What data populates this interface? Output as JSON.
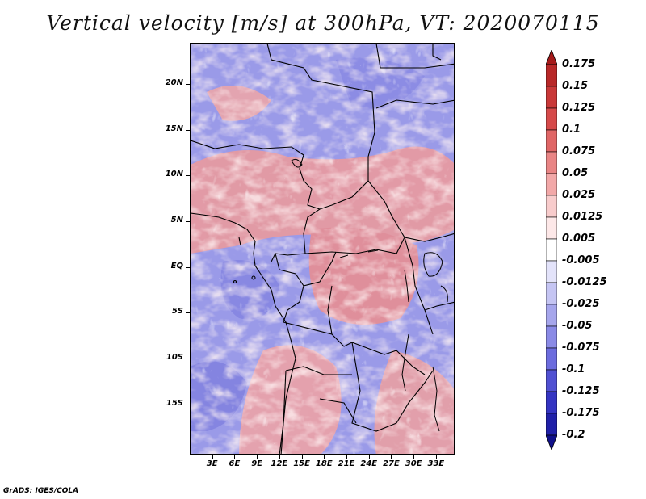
{
  "title": "Vertical velocity [m/s] at 300hPa, VT: 2020070115",
  "credit": "GrADS: IGES/COLA",
  "map": {
    "lat_labels": [
      "20N",
      "15N",
      "10N",
      "5N",
      "EQ",
      "5S",
      "10S",
      "15S"
    ],
    "lat_values": [
      20,
      15,
      10,
      5,
      0,
      -5,
      -10,
      -15
    ],
    "lon_labels": [
      "3E",
      "6E",
      "9E",
      "12E",
      "15E",
      "18E",
      "21E",
      "24E",
      "27E",
      "30E",
      "33E"
    ],
    "lon_values": [
      3,
      6,
      9,
      12,
      15,
      18,
      21,
      24,
      27,
      30,
      33
    ]
  },
  "colorbar": {
    "labels": [
      "0.175",
      "0.15",
      "0.125",
      "0.1",
      "0.075",
      "0.05",
      "0.025",
      "0.0125",
      "0.005",
      "-0.005",
      "-0.0125",
      "-0.025",
      "-0.05",
      "-0.075",
      "-0.1",
      "-0.125",
      "-0.175",
      "-0.2"
    ],
    "colors": [
      "#a51a1a",
      "#b82828",
      "#c93838",
      "#d64a4a",
      "#e06666",
      "#e98585",
      "#f2a8a8",
      "#f8cccc",
      "#fde8e8",
      "#ffffff",
      "#e3e3fa",
      "#c5c5f3",
      "#a6a6ec",
      "#8a8ae6",
      "#6c6cde",
      "#5050d2",
      "#3434c2",
      "#2020a8",
      "#10108a"
    ]
  }
}
